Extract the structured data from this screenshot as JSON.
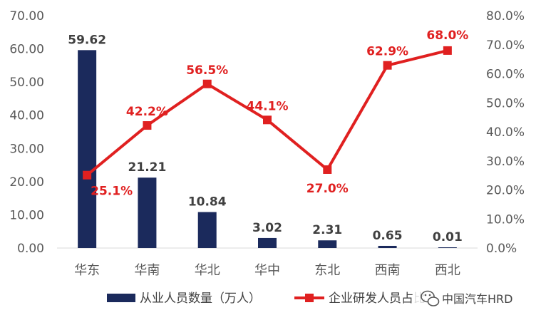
{
  "chart_data": {
    "type": "bar",
    "categories": [
      "华东",
      "华南",
      "华北",
      "华中",
      "东北",
      "西南",
      "西北"
    ],
    "series": [
      {
        "name": "从业人员数量（万人）",
        "type": "bar",
        "axis": "left",
        "values": [
          59.62,
          21.21,
          10.84,
          3.02,
          2.31,
          0.65,
          0.01
        ],
        "labels": [
          "59.62",
          "21.21",
          "10.84",
          "3.02",
          "2.31",
          "0.65",
          "0.01"
        ],
        "color": "#1b2a5c"
      },
      {
        "name": "企业研发人员占比",
        "type": "line",
        "axis": "right",
        "values": [
          25.1,
          42.2,
          56.5,
          44.1,
          27.0,
          62.9,
          68.0
        ],
        "labels": [
          "25.1%",
          "42.2%",
          "56.5%",
          "44.1%",
          "27.0%",
          "62.9%",
          "68.0%"
        ],
        "color": "#e02020"
      }
    ],
    "y_left": {
      "ylim": [
        0,
        70
      ],
      "ticks": [
        "0.00",
        "10.00",
        "20.00",
        "30.00",
        "40.00",
        "50.00",
        "60.00",
        "70.00"
      ]
    },
    "y_right": {
      "ylim": [
        0,
        80
      ],
      "ticks": [
        "0.0%",
        "10.0%",
        "20.0%",
        "30.0%",
        "40.0%",
        "50.0%",
        "60.0%",
        "70.0%",
        "80.0%"
      ]
    },
    "grid": false,
    "legend": "bottom"
  },
  "watermark": {
    "text": "中国汽车HRD",
    "icon": "wechat-icon"
  }
}
